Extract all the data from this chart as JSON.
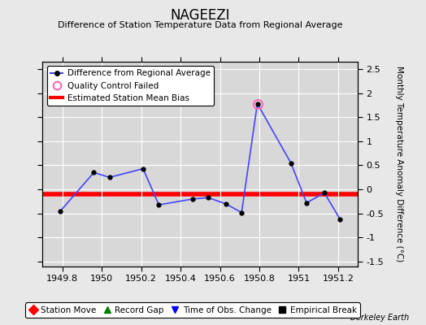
{
  "title": "NAGEEZI",
  "subtitle": "Difference of Station Temperature Data from Regional Average",
  "ylabel": "Monthly Temperature Anomaly Difference (°C)",
  "background_color": "#e8e8e8",
  "plot_bg_color": "#d8d8d8",
  "xlim": [
    1949.7,
    1951.3
  ],
  "ylim": [
    -1.6,
    2.65
  ],
  "xticks": [
    1949.8,
    1950.0,
    1950.2,
    1950.4,
    1950.6,
    1950.8,
    1951.0,
    1951.2
  ],
  "xtick_labels": [
    "1949.8",
    "1950",
    "1950.2",
    "1950.4",
    "1950.6",
    "1950.8",
    "1951",
    "1951.2"
  ],
  "yticks": [
    -1.5,
    -1.0,
    -0.5,
    0.0,
    0.5,
    1.0,
    1.5,
    2.0,
    2.5
  ],
  "ytick_labels": [
    "-1.5",
    "-1",
    "-0.5",
    "0",
    "0.5",
    "1",
    "1.5",
    "2",
    "2.5"
  ],
  "x_data": [
    1949.79,
    1949.96,
    1950.04,
    1950.21,
    1950.29,
    1950.46,
    1950.54,
    1950.63,
    1950.71,
    1950.79,
    1950.96,
    1951.04,
    1951.13,
    1951.21
  ],
  "y_data": [
    -0.45,
    0.35,
    0.25,
    0.43,
    -0.32,
    -0.2,
    -0.17,
    -0.3,
    -0.48,
    1.78,
    0.55,
    -0.28,
    -0.07,
    -0.62
  ],
  "qc_failed_x": [
    1950.79
  ],
  "qc_failed_y": [
    1.78
  ],
  "mean_bias": -0.1,
  "line_color": "#4444ff",
  "marker_color": "#000000",
  "bias_color": "#ff0000",
  "qc_color": "#ff69b4",
  "grid_color": "#ffffff",
  "watermark": "Berkeley Earth",
  "legend1_labels": [
    "Difference from Regional Average",
    "Quality Control Failed",
    "Estimated Station Mean Bias"
  ],
  "legend2_labels": [
    "Station Move",
    "Record Gap",
    "Time of Obs. Change",
    "Empirical Break"
  ],
  "legend2_colors": [
    "#ff0000",
    "#008000",
    "#0000ff",
    "#000000"
  ],
  "legend2_markers": [
    "D",
    "^",
    "v",
    "s"
  ]
}
